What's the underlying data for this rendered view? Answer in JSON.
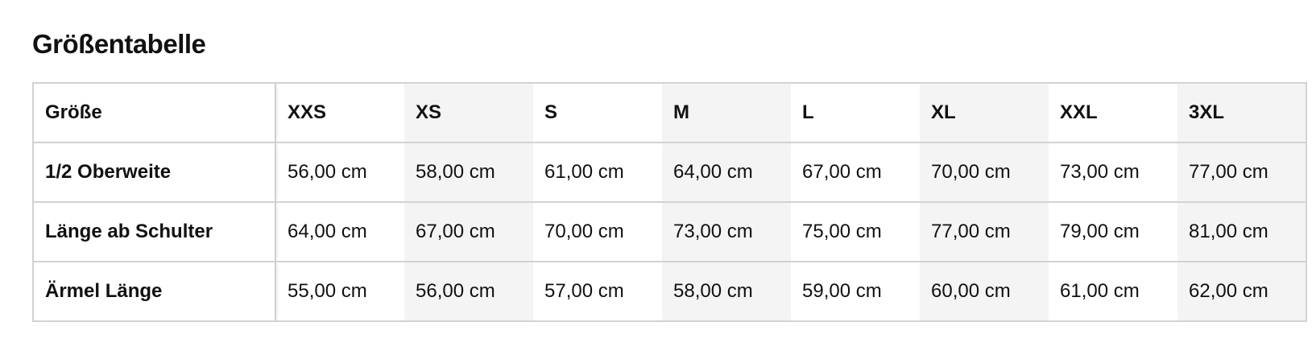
{
  "title": "Größentabelle",
  "table": {
    "header_label": "Größe",
    "sizes": [
      "XXS",
      "XS",
      "S",
      "M",
      "L",
      "XL",
      "XXL",
      "3XL"
    ],
    "rows": [
      {
        "label": "1/2 Oberweite",
        "values": [
          "56,00 cm",
          "58,00 cm",
          "61,00 cm",
          "64,00 cm",
          "67,00 cm",
          "70,00 cm",
          "73,00 cm",
          "77,00 cm"
        ]
      },
      {
        "label": "Länge ab Schulter",
        "values": [
          "64,00 cm",
          "67,00 cm",
          "70,00 cm",
          "73,00 cm",
          "75,00 cm",
          "77,00 cm",
          "79,00 cm",
          "81,00 cm"
        ]
      },
      {
        "label": "Ärmel Länge",
        "values": [
          "55,00 cm",
          "56,00 cm",
          "57,00 cm",
          "58,00 cm",
          "59,00 cm",
          "60,00 cm",
          "61,00 cm",
          "62,00 cm"
        ]
      }
    ]
  },
  "colors": {
    "shaded_column": "#f4f4f4",
    "border": "#d2d2d2"
  }
}
